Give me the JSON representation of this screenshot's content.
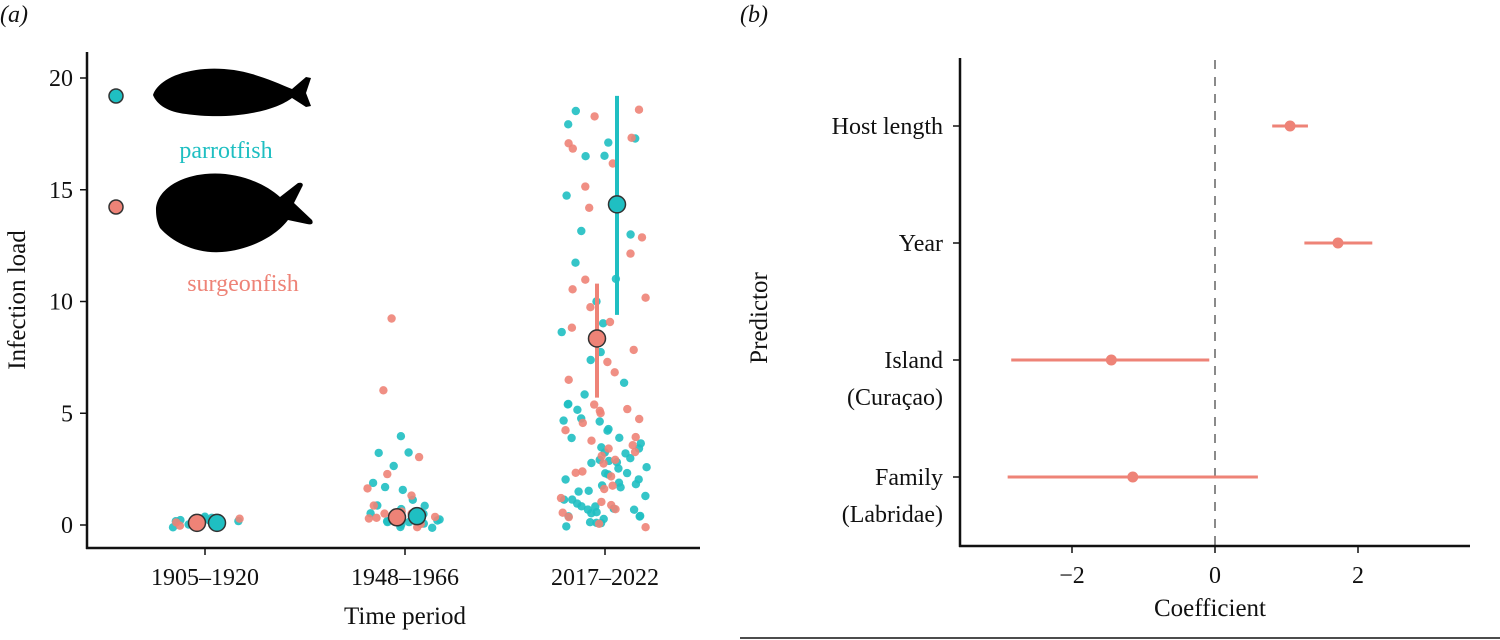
{
  "colors": {
    "parrotfish": "#1FBFC2",
    "surgeonfish": "#EE8377",
    "axis": "#111111",
    "zero_line": "#8a8a8a",
    "silhouette": "#000000"
  },
  "chart_data": [
    {
      "panel_tag": "(a)",
      "type": "scatter",
      "xlabel": "Time period",
      "ylabel": "Infection load",
      "categories": [
        "1905–1920",
        "1948–1966",
        "2017–2022"
      ],
      "ylim": [
        -1,
        21
      ],
      "yticks": [
        0,
        5,
        10,
        15,
        20
      ],
      "legend": {
        "placement": "top-left",
        "entries": [
          {
            "name": "parrotfish",
            "color": "#1FBFC2",
            "icon": "parrotfish-silhouette-icon"
          },
          {
            "name": "surgeonfish",
            "color": "#EE8377",
            "icon": "surgeonfish-silhouette-icon"
          }
        ]
      },
      "series": [
        {
          "name": "parrotfish",
          "color": "#1FBFC2",
          "means": [
            {
              "category": "1905–1920",
              "mean": 0.05,
              "lower": 0.05,
              "upper": 0.05
            },
            {
              "category": "1948–1966",
              "mean": 0.35,
              "lower": 0.35,
              "upper": 0.35
            },
            {
              "category": "2017–2022",
              "mean": 14.3,
              "lower": 9.4,
              "upper": 19.2
            }
          ]
        },
        {
          "name": "surgeonfish",
          "color": "#EE8377",
          "means": [
            {
              "category": "1905–1920",
              "mean": 0.05,
              "lower": 0.05,
              "upper": 0.05
            },
            {
              "category": "1948–1966",
              "mean": 0.3,
              "lower": 0.3,
              "upper": 0.3
            },
            {
              "category": "2017–2022",
              "mean": 8.3,
              "lower": 5.7,
              "upper": 10.8
            }
          ]
        }
      ],
      "raw_points": [
        {
          "category": "1905–1920",
          "series": "parrotfish",
          "values": [
            0.3,
            0.1,
            0.2,
            0.0,
            0.3,
            0.1,
            0.2,
            0.3,
            0.0,
            0.2,
            0.1,
            0.3
          ]
        },
        {
          "category": "1905–1920",
          "series": "surgeonfish",
          "values": [
            0.1,
            0.2,
            0.3,
            0.2,
            0.1
          ]
        },
        {
          "category": "1948–1966",
          "series": "parrotfish",
          "values": [
            3.9,
            3.2,
            3.3,
            2.6,
            2.0,
            1.8,
            1.5,
            1.1,
            0.9,
            0.8,
            0.6,
            0.5,
            0.3,
            0.2,
            0.1,
            0.0,
            0.0,
            0.1,
            0.4,
            0.2,
            0.0,
            0.3,
            0.1,
            0.0
          ]
        },
        {
          "category": "1948–1966",
          "series": "surgeonfish",
          "values": [
            9.2,
            6.0,
            3.1,
            2.4,
            1.6,
            1.3,
            1.0,
            0.7,
            0.5,
            0.4,
            0.3,
            0.2,
            0.1,
            0.0,
            0.6
          ]
        },
        {
          "category": "2017–2022",
          "series": "parrotfish",
          "values": [
            18.4,
            17.8,
            17.2,
            17.2,
            16.4,
            16.5,
            14.7,
            13.1,
            12.9,
            11.6,
            10.9,
            9.9,
            9.0,
            8.7,
            7.8,
            7.5,
            6.4,
            5.8,
            5.5,
            5.3,
            5.1,
            4.7,
            4.6,
            4.4,
            4.2,
            4.0,
            3.9,
            3.7,
            3.6,
            3.4,
            3.3,
            3.1,
            3.0,
            2.9,
            2.8,
            2.6,
            2.5,
            2.4,
            2.3,
            2.1,
            2.0,
            1.9,
            1.8,
            1.6,
            1.5,
            1.4,
            1.3,
            1.1,
            1.0,
            0.9,
            0.8,
            0.7,
            0.6,
            0.5,
            0.4,
            0.3,
            0.2,
            0.1,
            0.0,
            0.0,
            0.1,
            0.3,
            0.5,
            0.7,
            1.2,
            1.7,
            2.2,
            2.7,
            3.2,
            4.8
          ]
        },
        {
          "category": "2017–2022",
          "series": "surgeonfish",
          "values": [
            18.7,
            18.4,
            17.3,
            17.0,
            16.9,
            16.3,
            15.1,
            14.1,
            12.9,
            12.2,
            11.0,
            10.6,
            10.2,
            9.7,
            9.1,
            8.8,
            7.9,
            7.3,
            6.8,
            6.4,
            5.5,
            5.3,
            5.1,
            5.0,
            4.7,
            4.5,
            4.2,
            3.9,
            3.6,
            3.3,
            3.0,
            2.7,
            2.4,
            2.1,
            1.8,
            1.5,
            1.2,
            0.9,
            0.6,
            0.3,
            0.1,
            0.0,
            2.2,
            3.4,
            4.0,
            1.0,
            0.5,
            2.8
          ]
        }
      ]
    },
    {
      "panel_tag": "(b)",
      "type": "scatter",
      "xlabel": "Coefficient",
      "ylabel": "Predictor",
      "xlim": [
        -3.6,
        3.5
      ],
      "xticks": [
        -2,
        0,
        2
      ],
      "xtick_labels": [
        "−2",
        "0",
        "2"
      ],
      "reference_line": 0,
      "color": "#EE8377",
      "predictors": [
        {
          "lines": [
            "Host length"
          ],
          "estimate": 1.05,
          "lower": 0.8,
          "upper": 1.3
        },
        {
          "lines": [
            "Year"
          ],
          "estimate": 1.72,
          "lower": 1.25,
          "upper": 2.2
        },
        {
          "lines": [
            "Island",
            "(Curaçao)"
          ],
          "estimate": -1.45,
          "lower": -2.85,
          "upper": -0.08
        },
        {
          "lines": [
            "Family",
            "(Labridae)"
          ],
          "estimate": -1.15,
          "lower": -2.9,
          "upper": 0.6
        }
      ]
    }
  ]
}
